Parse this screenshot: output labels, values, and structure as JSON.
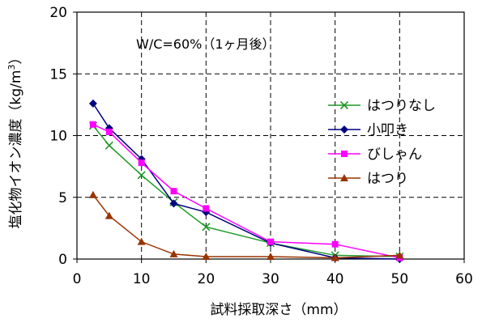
{
  "chart_data": {
    "type": "line",
    "title": "",
    "annotation": "W/C=60%（1ヶ月後）",
    "xlabel": "試料採取深さ（mm）",
    "ylabel_main": "塩化物イオン濃度（kg/m",
    "ylabel_sup": "3",
    "ylabel_end": "）",
    "xlim": [
      0,
      60
    ],
    "ylim": [
      0,
      20
    ],
    "xticks": [
      0,
      10,
      20,
      30,
      40,
      50,
      60
    ],
    "yticks": [
      0,
      5,
      10,
      15,
      20
    ],
    "grid": "dashed",
    "legend_position": "right",
    "series": [
      {
        "name": "はつりなし",
        "color": "#1e9a28",
        "marker": "x",
        "x": [
          2.5,
          5,
          10,
          15,
          20,
          30,
          40,
          50
        ],
        "y": [
          10.8,
          9.2,
          6.8,
          4.6,
          2.6,
          1.3,
          0.3,
          0.2
        ]
      },
      {
        "name": "小叩き",
        "color": "#000080",
        "marker": "diamond",
        "x": [
          2.5,
          5,
          10,
          15,
          20,
          30,
          40,
          50
        ],
        "y": [
          12.6,
          10.6,
          8.1,
          4.5,
          3.8,
          1.3,
          0.1,
          0.0
        ]
      },
      {
        "name": "びしゃん",
        "color": "#ff00ff",
        "marker": "square",
        "x": [
          2.5,
          5,
          10,
          15,
          20,
          30,
          40,
          50
        ],
        "y": [
          10.9,
          10.3,
          7.8,
          5.5,
          4.1,
          1.4,
          1.2,
          0.1
        ]
      },
      {
        "name": "はつり",
        "color": "#993300",
        "marker": "triangle",
        "x": [
          2.5,
          5,
          10,
          15,
          20,
          30,
          40,
          50
        ],
        "y": [
          5.2,
          3.5,
          1.4,
          0.4,
          0.2,
          0.2,
          0.1,
          0.3
        ]
      }
    ]
  }
}
